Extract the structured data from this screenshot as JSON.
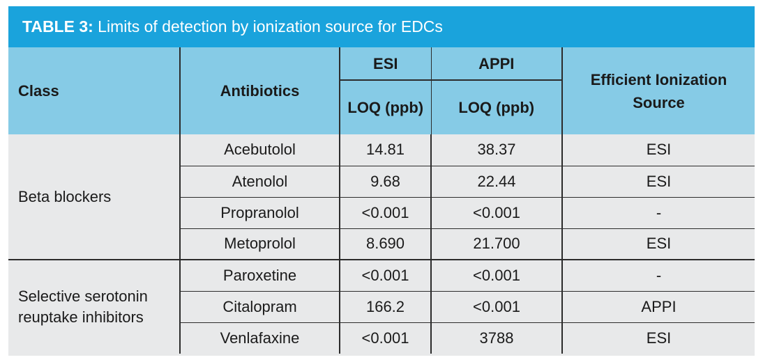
{
  "title": {
    "prefix": "TABLE 3:",
    "text": " Limits of detection by ionization source for EDCs"
  },
  "headers": {
    "class": "Class",
    "antibiotics": "Antibiotics",
    "esi": "ESI",
    "appi": "APPI",
    "esi_loq": "LOQ (ppb)",
    "appi_loq": "LOQ (ppb)",
    "efficient": "Efficient Ionization Source"
  },
  "groups": [
    {
      "class": "Beta blockers",
      "rows": [
        {
          "drug": "Acebutolol",
          "esi": "14.81",
          "appi": "38.37",
          "source": "ESI"
        },
        {
          "drug": "Atenolol",
          "esi": "9.68",
          "appi": "22.44",
          "source": "ESI"
        },
        {
          "drug": "Propranolol",
          "esi": "<0.001",
          "appi": "<0.001",
          "source": "-"
        },
        {
          "drug": "Metoprolol",
          "esi": "8.690",
          "appi": "21.700",
          "source": "ESI"
        }
      ]
    },
    {
      "class": "Selective serotonin reuptake inhibitors",
      "rows": [
        {
          "drug": "Paroxetine",
          "esi": "<0.001",
          "appi": "<0.001",
          "source": "-"
        },
        {
          "drug": "Citalopram",
          "esi": "166.2",
          "appi": "<0.001",
          "source": "APPI"
        },
        {
          "drug": "Venlafaxine",
          "esi": "<0.001",
          "appi": "3788",
          "source": "ESI"
        }
      ]
    }
  ]
}
